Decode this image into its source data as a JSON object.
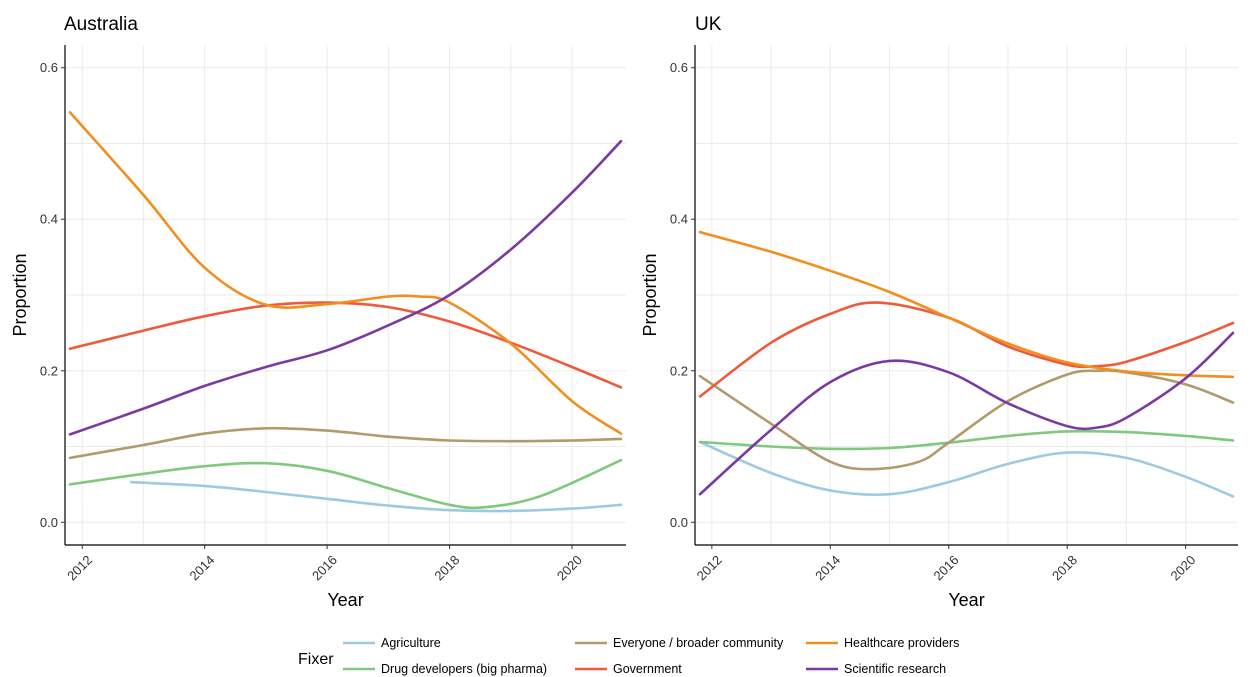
{
  "chart_data": [
    {
      "type": "line",
      "title": "Australia",
      "xlabel": "Year",
      "ylabel": "Proportion",
      "xlim": [
        2011.8,
        2020.8
      ],
      "ylim": [
        -0.03,
        0.63
      ],
      "xticks": [
        "2012",
        "2014",
        "2016",
        "2018",
        "2020"
      ],
      "yticks": [
        "0.0",
        "0.2",
        "0.4",
        "0.6"
      ],
      "grid": true,
      "series": [
        {
          "name": "Agriculture",
          "x": [
            2012.8,
            2014.0,
            2015.0,
            2016.0,
            2017.0,
            2018.0,
            2019.0,
            2020.0,
            2020.8
          ],
          "y": [
            0.053,
            0.048,
            0.04,
            0.031,
            0.022,
            0.016,
            0.015,
            0.018,
            0.023
          ]
        },
        {
          "name": "Drug developers (big pharma)",
          "x": [
            2011.8,
            2013.0,
            2014.0,
            2015.0,
            2016.0,
            2017.0,
            2018.0,
            2018.6,
            2019.5,
            2020.8
          ],
          "y": [
            0.05,
            0.064,
            0.074,
            0.078,
            0.068,
            0.045,
            0.023,
            0.02,
            0.035,
            0.082
          ]
        },
        {
          "name": "Everyone / broader community",
          "x": [
            2011.8,
            2013.0,
            2014.0,
            2015.0,
            2016.0,
            2017.0,
            2018.0,
            2019.0,
            2020.0,
            2020.8
          ],
          "y": [
            0.085,
            0.102,
            0.117,
            0.124,
            0.121,
            0.113,
            0.108,
            0.107,
            0.108,
            0.11
          ]
        },
        {
          "name": "Government",
          "x": [
            2011.8,
            2013.0,
            2014.0,
            2015.0,
            2016.0,
            2017.0,
            2018.0,
            2019.0,
            2020.0,
            2020.8
          ],
          "y": [
            0.229,
            0.253,
            0.272,
            0.286,
            0.29,
            0.284,
            0.265,
            0.237,
            0.205,
            0.178
          ]
        },
        {
          "name": "Healthcare providers",
          "x": [
            2011.8,
            2013.0,
            2014.0,
            2015.0,
            2016.0,
            2017.0,
            2017.5,
            2018.0,
            2019.0,
            2020.0,
            2020.8
          ],
          "y": [
            0.541,
            0.432,
            0.336,
            0.287,
            0.288,
            0.298,
            0.298,
            0.29,
            0.236,
            0.16,
            0.117
          ]
        },
        {
          "name": "Scientific research",
          "x": [
            2011.8,
            2013.0,
            2014.0,
            2015.0,
            2016.0,
            2017.0,
            2018.0,
            2019.0,
            2020.0,
            2020.8
          ],
          "y": [
            0.116,
            0.15,
            0.18,
            0.205,
            0.227,
            0.26,
            0.3,
            0.36,
            0.435,
            0.503
          ]
        }
      ]
    },
    {
      "type": "line",
      "title": "UK",
      "xlabel": "Year",
      "ylabel": "Proportion",
      "xlim": [
        2011.8,
        2020.8
      ],
      "ylim": [
        -0.03,
        0.63
      ],
      "xticks": [
        "2012",
        "2014",
        "2016",
        "2018",
        "2020"
      ],
      "yticks": [
        "0.0",
        "0.2",
        "0.4",
        "0.6"
      ],
      "grid": true,
      "series": [
        {
          "name": "Agriculture",
          "x": [
            2011.8,
            2013.0,
            2014.0,
            2015.0,
            2016.0,
            2017.0,
            2018.0,
            2019.0,
            2020.0,
            2020.8
          ],
          "y": [
            0.106,
            0.065,
            0.042,
            0.037,
            0.053,
            0.077,
            0.092,
            0.085,
            0.06,
            0.034
          ]
        },
        {
          "name": "Drug developers (big pharma)",
          "x": [
            2011.8,
            2013.0,
            2014.0,
            2015.0,
            2016.0,
            2017.0,
            2018.0,
            2019.0,
            2020.0,
            2020.8
          ],
          "y": [
            0.106,
            0.1,
            0.097,
            0.098,
            0.105,
            0.114,
            0.12,
            0.119,
            0.114,
            0.108
          ]
        },
        {
          "name": "Everyone / broader community",
          "x": [
            2011.8,
            2013.0,
            2014.0,
            2014.7,
            2015.5,
            2016.0,
            2017.0,
            2018.0,
            2018.5,
            2019.0,
            2020.0,
            2020.8
          ],
          "y": [
            0.193,
            0.13,
            0.08,
            0.07,
            0.08,
            0.105,
            0.16,
            0.195,
            0.2,
            0.198,
            0.182,
            0.158
          ]
        },
        {
          "name": "Government",
          "x": [
            2011.8,
            2013.0,
            2014.0,
            2014.8,
            2016.0,
            2017.0,
            2018.0,
            2018.5,
            2019.0,
            2020.0,
            2020.8
          ],
          "y": [
            0.166,
            0.237,
            0.275,
            0.29,
            0.27,
            0.232,
            0.208,
            0.206,
            0.212,
            0.238,
            0.263
          ]
        },
        {
          "name": "Healthcare providers",
          "x": [
            2011.8,
            2013.0,
            2014.0,
            2015.0,
            2016.0,
            2017.0,
            2018.0,
            2019.0,
            2020.0,
            2020.8
          ],
          "y": [
            0.383,
            0.357,
            0.332,
            0.304,
            0.27,
            0.236,
            0.211,
            0.199,
            0.194,
            0.192
          ]
        },
        {
          "name": "Scientific research",
          "x": [
            2011.8,
            2013.0,
            2014.0,
            2015.0,
            2016.0,
            2017.0,
            2018.0,
            2018.5,
            2019.0,
            2020.0,
            2020.8
          ],
          "y": [
            0.037,
            0.122,
            0.185,
            0.213,
            0.198,
            0.157,
            0.127,
            0.125,
            0.138,
            0.19,
            0.25
          ]
        }
      ]
    }
  ],
  "legend": {
    "title": "Fixer",
    "placement": "bottom",
    "items": [
      {
        "label": "Agriculture",
        "color": "#9ecae1"
      },
      {
        "label": "Drug developers (big pharma)",
        "color": "#7fc97f"
      },
      {
        "label": "Everyone / broader community",
        "color": "#b19a6b"
      },
      {
        "label": "Government",
        "color": "#ef5a3c"
      },
      {
        "label": "Healthcare providers",
        "color": "#f28e1c"
      },
      {
        "label": "Scientific research",
        "color": "#7b3aa0"
      }
    ]
  }
}
